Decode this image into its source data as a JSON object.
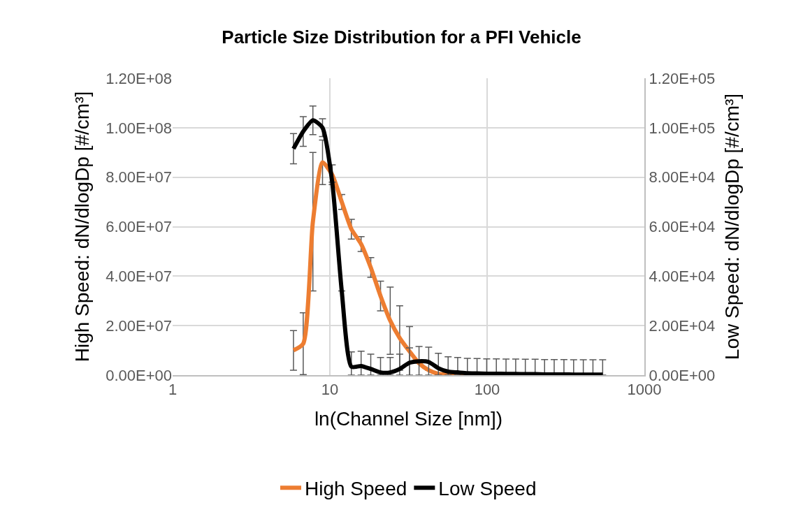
{
  "chart_data": {
    "type": "line",
    "title": "Particle Size Distribution for a PFI Vehicle",
    "xlabel": "ln(Channel Size [nm])",
    "ylabel": "High Speed: dN/dlogDp [#/cm³]",
    "y2label": "Low Speed: dN/dlogDp [#/cm³]",
    "x": [
      5.87,
      6.77,
      7.8,
      8.98,
      10.35,
      11.9,
      13.7,
      15.8,
      18.2,
      21.0,
      24.2,
      27.8,
      32.1,
      36.9,
      42.5,
      49.0,
      56.5,
      65.0,
      74.9,
      86.3,
      99.4,
      114.5,
      131.9,
      152,
      175,
      202,
      232,
      267,
      308,
      355,
      409,
      471,
      543
    ],
    "series": [
      {
        "name": "High Speed",
        "color": "#ed7d31",
        "values": [
          10000000,
          12700000,
          62000000,
          86000000,
          81000000,
          70000000,
          59000000,
          53000000,
          43500000,
          32000000,
          22000000,
          15000000,
          9600000,
          4800000,
          2000000,
          500000,
          200000,
          0,
          0,
          null,
          null,
          null,
          null,
          null,
          null,
          null,
          null,
          null,
          null,
          null,
          null,
          null,
          null
        ],
        "errors": [
          8000000,
          12500000,
          28000000,
          9000000,
          4000000,
          3000000,
          4000000,
          3000000,
          4000000,
          6000000,
          13600000,
          13000000,
          10000000,
          null,
          null,
          null,
          null,
          null,
          null,
          null,
          null,
          null,
          null,
          null,
          null,
          null,
          null,
          null,
          null,
          null,
          null,
          null,
          null
        ]
      },
      {
        "name": "Low Speed",
        "color": "#000000",
        "axis": "y2",
        "values": [
          91500,
          98500,
          103000,
          100000,
          78000,
          34000,
          3400,
          3700,
          2500,
          1100,
          1100,
          2500,
          5000,
          5600,
          5300,
          2800,
          1400,
          1100,
          800,
          700,
          600,
          600,
          500,
          500,
          400,
          400,
          300,
          300,
          300,
          200,
          200,
          200,
          200
        ],
        "errors": [
          6100,
          6000,
          5800,
          3600,
          null,
          null,
          [
            0,
            9400
          ],
          [
            0,
            9700
          ],
          [
            0,
            8500
          ],
          [
            0,
            7100
          ],
          [
            0,
            7100
          ],
          [
            0,
            8500
          ],
          [
            0,
            11000
          ],
          [
            0,
            11600
          ],
          [
            0,
            11300
          ],
          [
            0,
            8800
          ],
          [
            0,
            7400
          ],
          [
            0,
            7100
          ],
          [
            0,
            6800
          ],
          [
            0,
            6700
          ],
          [
            0,
            6600
          ],
          [
            0,
            6600
          ],
          [
            0,
            6500
          ],
          [
            0,
            6500
          ],
          [
            0,
            6400
          ],
          [
            0,
            6400
          ],
          [
            0,
            6300
          ],
          [
            0,
            6300
          ],
          [
            0,
            6300
          ],
          [
            0,
            6200
          ],
          [
            0,
            6200
          ],
          [
            0,
            6200
          ],
          [
            0,
            6200
          ]
        ]
      }
    ],
    "log": "x",
    "xlim": [
      1,
      1000
    ],
    "xticks": [
      1,
      10,
      100,
      1000
    ],
    "ylim": [
      0,
      120000000
    ],
    "yticks": [
      {
        "value": 0,
        "label": "0.00E+00"
      },
      {
        "value": 20000000,
        "label": "2.00E+07"
      },
      {
        "value": 40000000,
        "label": "4.00E+07"
      },
      {
        "value": 60000000,
        "label": "6.00E+07"
      },
      {
        "value": 80000000,
        "label": "8.00E+07"
      },
      {
        "value": 100000000,
        "label": "1.00E+08"
      },
      {
        "value": 120000000,
        "label": "1.20E+08"
      }
    ],
    "y2lim": [
      0,
      120000
    ],
    "y2ticks": [
      {
        "value": 0,
        "label": "0.00E+00"
      },
      {
        "value": 20000,
        "label": "2.00E+04"
      },
      {
        "value": 40000,
        "label": "4.00E+04"
      },
      {
        "value": 60000,
        "label": "6.00E+04"
      },
      {
        "value": 80000,
        "label": "8.00E+04"
      },
      {
        "value": 100000,
        "label": "1.00E+05"
      },
      {
        "value": 120000,
        "label": "1.20E+05"
      }
    ],
    "grid": true,
    "legend": "bottom",
    "marker": "none",
    "line_style": "solid"
  }
}
